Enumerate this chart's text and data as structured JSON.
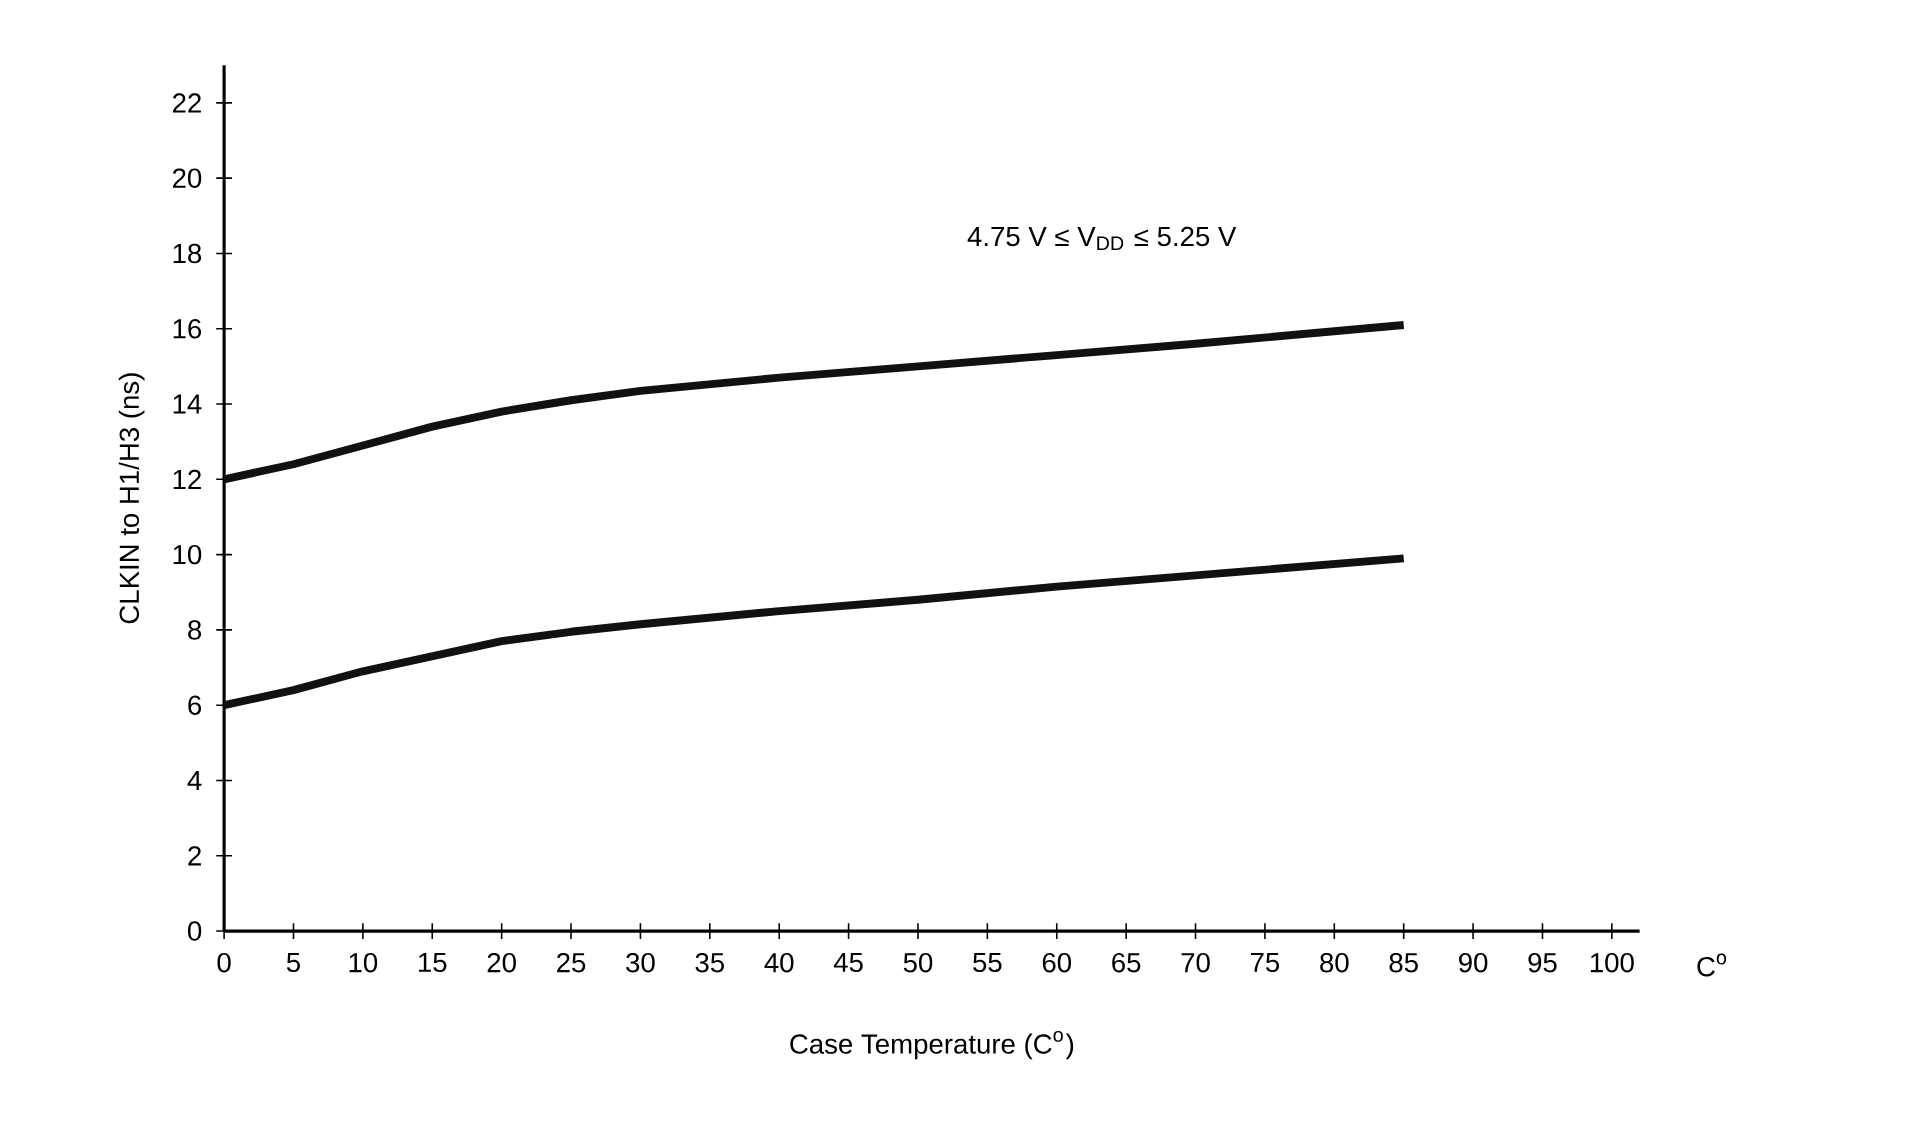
{
  "chart_data": {
    "type": "line",
    "xlabel": "Case Temperature (C$^{o}$)",
    "ylabel": "CLKIN to H1/H3 (ns)",
    "annotations": [
      "4.75 V ≤ V$_{DD}$ ≤ 5.25 V",
      "C$^{o}$"
    ],
    "x": [
      0,
      5,
      10,
      15,
      20,
      25,
      30,
      40,
      50,
      60,
      70,
      85
    ],
    "series": [
      {
        "color": "#111111",
        "values": [
          12,
          12.4,
          12.9,
          13.4,
          13.8,
          14.1,
          14.35,
          14.7,
          15.0,
          15.3,
          15.6,
          16.1
        ]
      },
      {
        "color": "#111111",
        "values": [
          6,
          6.4,
          6.9,
          7.3,
          7.7,
          7.95,
          8.15,
          8.5,
          8.8,
          9.15,
          9.45,
          9.9
        ]
      }
    ],
    "xlim": [
      0,
      102
    ],
    "ylim": [
      0,
      23
    ],
    "xticks": [
      0,
      5,
      10,
      15,
      20,
      25,
      30,
      35,
      40,
      45,
      50,
      55,
      60,
      65,
      70,
      75,
      80,
      85,
      90,
      95,
      100
    ],
    "yticks": [
      0,
      2,
      4,
      6,
      8,
      10,
      12,
      14,
      16,
      18,
      20,
      22
    ],
    "grid": false,
    "marker": "none",
    "line_style": "solid"
  }
}
